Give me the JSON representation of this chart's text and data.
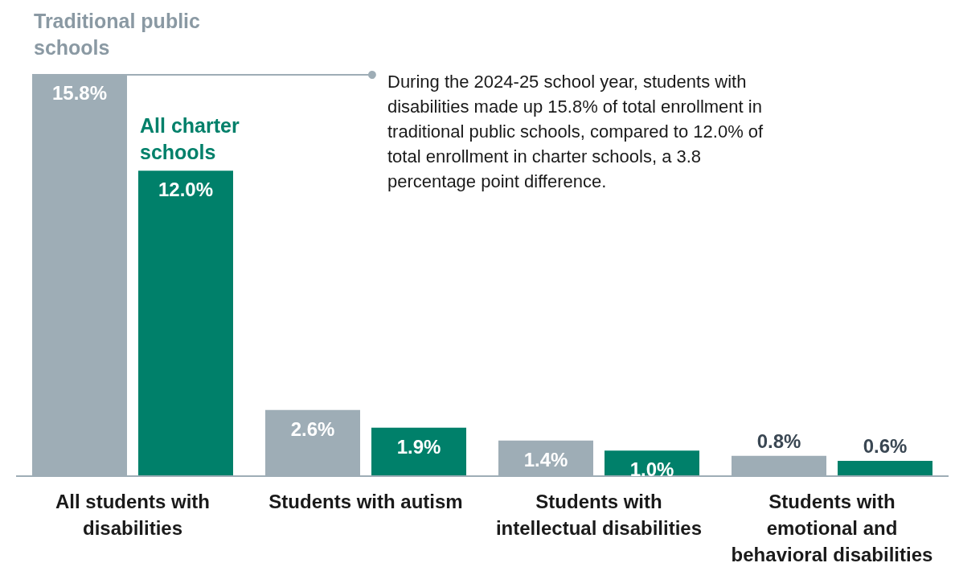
{
  "chart_data": {
    "type": "bar",
    "categories": [
      "All students with disabilities",
      "Students with autism",
      "Students with intellectual disabilities",
      "Students with emotional and behavioral disabilities"
    ],
    "series": [
      {
        "name": "Traditional public schools",
        "color": "#9eadb6",
        "values": [
          15.8,
          2.6,
          1.4,
          0.8
        ],
        "value_labels": [
          "15.8%",
          "2.6%",
          "1.4%",
          "0.8%"
        ]
      },
      {
        "name": "All charter schools",
        "color": "#00806a",
        "values": [
          12.0,
          1.9,
          1.0,
          0.6
        ],
        "value_labels": [
          "12.0%",
          "1.9%",
          "1.0%",
          "0.6%"
        ]
      }
    ],
    "legend": false,
    "grid": false,
    "annotations": [
      "During the 2024-25 school year, students with disabilities made up 15.8% of total enrollment in traditional public schools, compared to 12.0% of total enrollment in charter schools, a 3.8 percentage point difference."
    ]
  }
}
